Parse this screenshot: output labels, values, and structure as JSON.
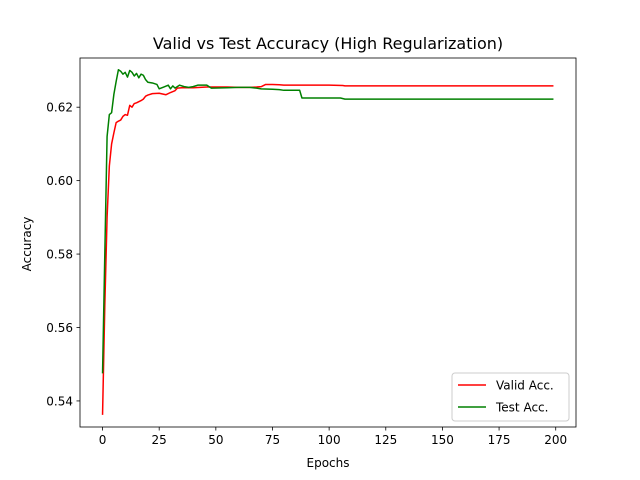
{
  "chart_data": {
    "type": "line",
    "title": "Valid vs Test Accuracy (High Regularization)",
    "xlabel": "Epochs",
    "ylabel": "Accuracy",
    "xlim": [
      -9.95,
      208.95
    ],
    "ylim": [
      0.5329,
      0.6334
    ],
    "xticks": [
      0,
      25,
      50,
      75,
      100,
      125,
      150,
      175,
      200
    ],
    "yticks": [
      0.54,
      0.56,
      0.58,
      0.6,
      0.62
    ],
    "ytick_labels": [
      "0.54",
      "0.56",
      "0.58",
      "0.60",
      "0.62"
    ],
    "grid": false,
    "legend_position": "lower-right",
    "series": [
      {
        "name": "Valid Acc.",
        "color": "#ff0000",
        "points": [
          [
            0,
            0.5362
          ],
          [
            1,
            0.566
          ],
          [
            2,
            0.59
          ],
          [
            3,
            0.604
          ],
          [
            4,
            0.61
          ],
          [
            5,
            0.613
          ],
          [
            6,
            0.6158
          ],
          [
            7,
            0.6162
          ],
          [
            8,
            0.6165
          ],
          [
            9,
            0.6175
          ],
          [
            10,
            0.618
          ],
          [
            11,
            0.6178
          ],
          [
            12,
            0.6205
          ],
          [
            13,
            0.62
          ],
          [
            14,
            0.621
          ],
          [
            15,
            0.6212
          ],
          [
            16,
            0.6215
          ],
          [
            17,
            0.6218
          ],
          [
            18,
            0.6222
          ],
          [
            19,
            0.623
          ],
          [
            20,
            0.6233
          ],
          [
            22,
            0.6237
          ],
          [
            25,
            0.6238
          ],
          [
            28,
            0.6234
          ],
          [
            30,
            0.624
          ],
          [
            32,
            0.6245
          ],
          [
            33,
            0.6252
          ],
          [
            35,
            0.6253
          ],
          [
            40,
            0.6253
          ],
          [
            43,
            0.6254
          ],
          [
            46,
            0.6255
          ],
          [
            50,
            0.6255
          ],
          [
            55,
            0.6255
          ],
          [
            60,
            0.6254
          ],
          [
            65,
            0.6254
          ],
          [
            68,
            0.6255
          ],
          [
            70,
            0.6256
          ],
          [
            72,
            0.6262
          ],
          [
            75,
            0.6262
          ],
          [
            78,
            0.6261
          ],
          [
            80,
            0.626
          ],
          [
            90,
            0.626
          ],
          [
            100,
            0.626
          ],
          [
            106,
            0.6259
          ],
          [
            107,
            0.6258
          ],
          [
            120,
            0.6258
          ],
          [
            150,
            0.6258
          ],
          [
            175,
            0.6258
          ],
          [
            199,
            0.6258
          ]
        ]
      },
      {
        "name": "Test Acc.",
        "color": "#008000",
        "points": [
          [
            0,
            0.5475
          ],
          [
            1,
            0.58
          ],
          [
            2,
            0.612
          ],
          [
            3,
            0.618
          ],
          [
            4,
            0.6185
          ],
          [
            5,
            0.6235
          ],
          [
            6,
            0.627
          ],
          [
            7,
            0.6302
          ],
          [
            8,
            0.6298
          ],
          [
            9,
            0.629
          ],
          [
            10,
            0.6295
          ],
          [
            11,
            0.6282
          ],
          [
            12,
            0.63
          ],
          [
            13,
            0.6295
          ],
          [
            14,
            0.6285
          ],
          [
            15,
            0.6292
          ],
          [
            16,
            0.628
          ],
          [
            17,
            0.629
          ],
          [
            18,
            0.6287
          ],
          [
            19,
            0.6275
          ],
          [
            20,
            0.6268
          ],
          [
            22,
            0.6266
          ],
          [
            24,
            0.6262
          ],
          [
            25,
            0.625
          ],
          [
            27,
            0.6255
          ],
          [
            29,
            0.626
          ],
          [
            30,
            0.625
          ],
          [
            31,
            0.6258
          ],
          [
            32,
            0.6252
          ],
          [
            34,
            0.626
          ],
          [
            36,
            0.6256
          ],
          [
            38,
            0.6254
          ],
          [
            40,
            0.6256
          ],
          [
            42,
            0.626
          ],
          [
            46,
            0.626
          ],
          [
            48,
            0.6252
          ],
          [
            55,
            0.6253
          ],
          [
            60,
            0.6254
          ],
          [
            65,
            0.6254
          ],
          [
            68,
            0.6252
          ],
          [
            70,
            0.625
          ],
          [
            75,
            0.6249
          ],
          [
            78,
            0.6248
          ],
          [
            80,
            0.6246
          ],
          [
            87,
            0.6246
          ],
          [
            88,
            0.6225
          ],
          [
            95,
            0.6225
          ],
          [
            105,
            0.6225
          ],
          [
            107,
            0.6222
          ],
          [
            120,
            0.6222
          ],
          [
            150,
            0.6222
          ],
          [
            175,
            0.6222
          ],
          [
            199,
            0.6222
          ]
        ]
      }
    ]
  }
}
